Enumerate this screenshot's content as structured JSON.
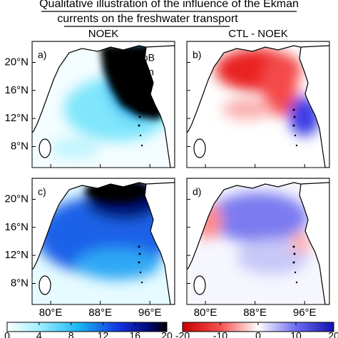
{
  "title": [
    "Qualitative illustration of the influence of the Ekman",
    "currents on the freshwater transport"
  ],
  "columns": [
    "NOEK",
    "CTL - NOEK"
  ],
  "panels": [
    {
      "label": "a)",
      "annotations": [
        "NEBoB",
        "Rain"
      ]
    },
    {
      "label": "b)"
    },
    {
      "label": "c)"
    },
    {
      "label": "d)"
    }
  ],
  "axes": {
    "xlim": [
      77,
      100
    ],
    "ylim": [
      5,
      23
    ],
    "xticks": [
      {
        "value": 80,
        "label": "80°E"
      },
      {
        "value": 88,
        "label": "88°E"
      },
      {
        "value": 96,
        "label": "96°E"
      }
    ],
    "yticks": [
      {
        "value": 8,
        "label": "8°N"
      },
      {
        "value": 12,
        "label": "12°N"
      },
      {
        "value": 16,
        "label": "16°N"
      },
      {
        "value": 20,
        "label": "20°N"
      }
    ]
  },
  "colorbars": [
    {
      "lim": [
        0,
        20
      ],
      "ticks": [
        0,
        4,
        8,
        12,
        16,
        20
      ]
    },
    {
      "lim": [
        -20,
        20
      ],
      "ticks": [
        -20,
        -10,
        0,
        10,
        20
      ]
    }
  ]
}
